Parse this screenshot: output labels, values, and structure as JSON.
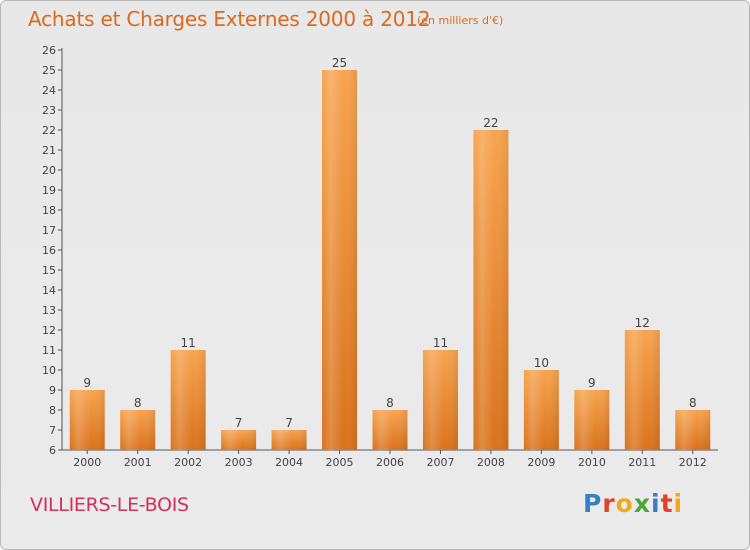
{
  "header": {
    "title": "Achats et Charges Externes 2000 à 2012",
    "subtitle": "(en milliers d'€)"
  },
  "footer": {
    "place": "VILLIERS-LE-BOIS",
    "logo_text": "Proxiti"
  },
  "colors": {
    "bar_light": "#f7a44f",
    "bar_dark": "#d9731c",
    "title": "#d96a1f",
    "place": "#d2305c"
  },
  "chart_data": {
    "type": "bar",
    "categories": [
      "2000",
      "2001",
      "2002",
      "2003",
      "2004",
      "2005",
      "2006",
      "2007",
      "2008",
      "2009",
      "2010",
      "2011",
      "2012"
    ],
    "values": [
      9,
      8,
      11,
      7,
      7,
      25,
      8,
      11,
      22,
      10,
      9,
      12,
      8
    ],
    "title": "Achats et Charges Externes 2000 à 2012",
    "subtitle": "(en milliers d'€)",
    "xlabel": "",
    "ylabel": "",
    "ylim": [
      6,
      26
    ],
    "yticks": [
      6,
      7,
      8,
      9,
      10,
      11,
      12,
      13,
      14,
      15,
      16,
      17,
      18,
      19,
      20,
      21,
      22,
      23,
      24,
      25,
      26
    ],
    "grid": false,
    "legend": "none"
  }
}
